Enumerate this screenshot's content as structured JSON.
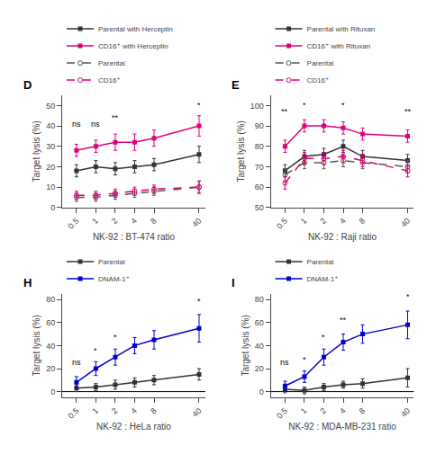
{
  "chart_data": [
    {
      "type": "line",
      "title": "D",
      "x_label": "NK-92 : BT-474 ratio",
      "y_label": "Target lysis (%)",
      "log": "x",
      "x": [
        0.5,
        1,
        2,
        4,
        8,
        40
      ],
      "xlim": [
        0.3,
        50
      ],
      "xticks": [
        0.5,
        1,
        2,
        4,
        8,
        40
      ],
      "ylim": [
        0,
        55
      ],
      "yticks": [
        0,
        10,
        20,
        30,
        40,
        50
      ],
      "grid": false,
      "legend": "top",
      "series": [
        {
          "name": "Parental with Herceptin",
          "color": "#333333",
          "line_style": "solid",
          "marker": "square",
          "values": [
            18,
            20,
            19,
            20,
            21,
            26
          ],
          "yerr": [
            3,
            3,
            3,
            3,
            3,
            4
          ]
        },
        {
          "name": "CD16⁺ with Herceptin",
          "color": "#e0007a",
          "line_style": "solid",
          "marker": "square",
          "values": [
            28,
            30,
            32,
            32,
            34,
            40
          ],
          "yerr": [
            3,
            3,
            4,
            4,
            4,
            5
          ]
        },
        {
          "name": "Parental",
          "color": "#555555",
          "line_style": "dashed",
          "marker": "circle",
          "values": [
            5,
            5,
            6,
            7,
            8,
            10
          ],
          "yerr": [
            2,
            2,
            2,
            2,
            2,
            3
          ]
        },
        {
          "name": "CD16⁺",
          "color": "#e0007a",
          "line_style": "dashed",
          "marker": "circle",
          "values": [
            6,
            6,
            7,
            8,
            9,
            10
          ],
          "yerr": [
            2,
            2,
            2,
            2,
            2,
            3
          ]
        }
      ],
      "annotations": [
        {
          "text": "ns",
          "x": 0.5,
          "y": 38
        },
        {
          "text": "ns",
          "x": 1,
          "y": 38
        },
        {
          "text": "**",
          "x": 2,
          "y": 41
        },
        {
          "text": "*",
          "x": 40,
          "y": 47
        }
      ]
    },
    {
      "type": "line",
      "title": "E",
      "x_label": "NK-92 : Raji ratio",
      "y_label": "Target lysis (%)",
      "log": "x",
      "x": [
        0.5,
        1,
        2,
        4,
        8,
        40
      ],
      "xlim": [
        0.3,
        50
      ],
      "xticks": [
        0.5,
        1,
        2,
        4,
        8,
        40
      ],
      "ylim": [
        50,
        105
      ],
      "yticks": [
        50,
        60,
        70,
        80,
        90,
        100
      ],
      "grid": false,
      "legend": "top",
      "series": [
        {
          "name": "Parental with Rituxan",
          "color": "#333333",
          "line_style": "solid",
          "marker": "square",
          "values": [
            68,
            75,
            76,
            80,
            75,
            73
          ],
          "yerr": [
            3,
            3,
            3,
            3,
            3,
            3
          ]
        },
        {
          "name": "CD16⁺ with Rituxan",
          "color": "#e0007a",
          "line_style": "solid",
          "marker": "square",
          "values": [
            80,
            90,
            90,
            89,
            86,
            85
          ],
          "yerr": [
            3,
            3,
            3,
            3,
            3,
            3
          ]
        },
        {
          "name": "Parental",
          "color": "#555555",
          "line_style": "dashed",
          "marker": "circle",
          "values": [
            66,
            72,
            72,
            73,
            72,
            70
          ],
          "yerr": [
            3,
            3,
            3,
            3,
            3,
            3
          ]
        },
        {
          "name": "CD16⁺",
          "color": "#e0007a",
          "line_style": "dashed",
          "marker": "circle",
          "values": [
            62,
            74,
            74,
            75,
            73,
            68
          ],
          "yerr": [
            3,
            3,
            3,
            3,
            3,
            3
          ]
        }
      ],
      "annotations": [
        {
          "text": "**",
          "x": 0.5,
          "y": 94
        },
        {
          "text": "*",
          "x": 1,
          "y": 97
        },
        {
          "text": "*",
          "x": 4,
          "y": 97
        },
        {
          "text": "**",
          "x": 40,
          "y": 94
        }
      ]
    },
    {
      "type": "line",
      "title": "H",
      "x_label": "NK-92 : HeLa ratio",
      "y_label": "Target lysis (%)",
      "log": "x",
      "x": [
        0.5,
        1,
        2,
        4,
        8,
        40
      ],
      "xlim": [
        0.3,
        50
      ],
      "xticks": [
        0.5,
        1,
        2,
        4,
        8,
        40
      ],
      "ylim": [
        -5,
        85
      ],
      "yticks": [
        0,
        20,
        40,
        60,
        80
      ],
      "grid": false,
      "legend": "top",
      "hlines": [
        0
      ],
      "series": [
        {
          "name": "Parental",
          "color": "#333333",
          "line_style": "solid",
          "marker": "square",
          "values": [
            3,
            4,
            6,
            8,
            10,
            15
          ],
          "yerr": [
            3,
            3,
            4,
            4,
            4,
            5
          ]
        },
        {
          "name": "DNAM-1⁺",
          "color": "#0000cc",
          "line_style": "solid",
          "marker": "square",
          "values": [
            8,
            20,
            30,
            40,
            45,
            55
          ],
          "yerr": [
            5,
            6,
            7,
            7,
            8,
            12
          ]
        }
      ],
      "annotations": [
        {
          "text": "ns",
          "x": 0.5,
          "y": 20
        },
        {
          "text": "*",
          "x": 1,
          "y": 30
        },
        {
          "text": "*",
          "x": 2,
          "y": 42
        },
        {
          "text": "*",
          "x": 40,
          "y": 73
        }
      ]
    },
    {
      "type": "line",
      "title": "I",
      "x_label": "NK-92 : MDA-MB-231 ratio",
      "y_label": "Target lysis (%)",
      "log": "x",
      "x": [
        0.5,
        1,
        2,
        4,
        8,
        40
      ],
      "xlim": [
        0.3,
        50
      ],
      "xticks": [
        0.5,
        1,
        2,
        4,
        8,
        40
      ],
      "ylim": [
        -5,
        85
      ],
      "yticks": [
        0,
        20,
        40,
        60,
        80
      ],
      "grid": false,
      "legend": "top",
      "hlines": [
        0
      ],
      "series": [
        {
          "name": "Parental",
          "color": "#333333",
          "line_style": "solid",
          "marker": "square",
          "values": [
            2,
            1,
            4,
            6,
            7,
            12
          ],
          "yerr": [
            3,
            3,
            3,
            3,
            4,
            8
          ]
        },
        {
          "name": "DNAM-1⁺",
          "color": "#0000cc",
          "line_style": "solid",
          "marker": "square",
          "values": [
            5,
            13,
            30,
            43,
            50,
            58
          ],
          "yerr": [
            4,
            5,
            7,
            7,
            8,
            12
          ]
        }
      ],
      "annotations": [
        {
          "text": "ns",
          "x": 0.5,
          "y": 20
        },
        {
          "text": "*",
          "x": 1,
          "y": 22
        },
        {
          "text": "*",
          "x": 2,
          "y": 42
        },
        {
          "text": "**",
          "x": 4,
          "y": 57
        },
        {
          "text": "*",
          "x": 40,
          "y": 77
        }
      ]
    }
  ]
}
